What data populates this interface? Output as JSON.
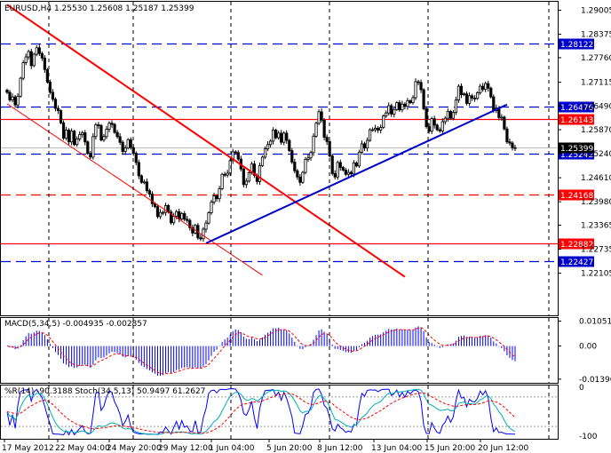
{
  "chart_data": [
    {
      "type": "candlestick",
      "title": "EURUSD,H4  1.25530 1.25608 1.25187 1.25399",
      "symbol": "EURUSD",
      "timeframe": "H4",
      "ohlc_readout": {
        "open": 1.2553,
        "high": 1.25608,
        "low": 1.25187,
        "close": 1.25399
      },
      "ylim": [
        1.21,
        1.2925
      ],
      "y_ticks": [
        "1.29005",
        "1.28375",
        "1.27760",
        "1.27115",
        "1.26490",
        "1.25870",
        "1.25240",
        "1.24610",
        "1.23980",
        "1.23365",
        "1.22735",
        "1.22105"
      ],
      "x_ticks": [
        "17 May 2012",
        "22 May 04:00",
        "24 May 20:00",
        "29 May 12:00",
        "1 Jun 04:00",
        "5 Jun 20:00",
        "8 Jun 12:00",
        "13 Jun 04:00",
        "15 Jun 20:00",
        "20 Jun 12:00"
      ],
      "grid": true,
      "current_price": "1.25399",
      "horizontal_levels": [
        {
          "label": "1.28122",
          "price": 1.28122,
          "color": "#0000cc",
          "style": "dashed"
        },
        {
          "label": "1.26476",
          "price": 1.26476,
          "color": "#0000cc",
          "style": "dashed"
        },
        {
          "label": "1.26143",
          "price": 1.26143,
          "color": "#ff0000",
          "style": "solid"
        },
        {
          "label": "1.25242",
          "price": 1.25242,
          "color": "#0000cc",
          "style": "dashed"
        },
        {
          "label": "1.24168",
          "price": 1.24168,
          "color": "#ff0000",
          "style": "dashed"
        },
        {
          "label": "1.22882",
          "price": 1.22882,
          "color": "#ff0000",
          "style": "solid"
        },
        {
          "label": "1.22427",
          "price": 1.22427,
          "color": "#0000cc",
          "style": "dashed"
        }
      ],
      "trend_lines": [
        {
          "name": "descending channel upper",
          "color": "#ff0000",
          "from": {
            "bar": 0,
            "price": 1.2915
          },
          "to": {
            "bar": 148,
            "price": 1.2201
          }
        },
        {
          "name": "descending channel lower",
          "color": "#ff0000",
          "from": {
            "bar": 0,
            "price": 1.2655
          },
          "to": {
            "bar": 95,
            "price": 1.2205
          }
        },
        {
          "name": "ascending support",
          "color": "#0000cc",
          "from": {
            "bar": 74,
            "price": 1.2289
          },
          "to": {
            "bar": 186,
            "price": 1.2653
          }
        }
      ],
      "closes": [
        1.2685,
        1.2665,
        1.2673,
        1.2652,
        1.2675,
        1.2722,
        1.2763,
        1.2778,
        1.2792,
        1.2755,
        1.2785,
        1.2802,
        1.2787,
        1.2775,
        1.2745,
        1.2712,
        1.2685,
        1.2667,
        1.2643,
        1.2637,
        1.2605,
        1.2565,
        1.2586,
        1.2555,
        1.2583,
        1.2548,
        1.2563,
        1.2574,
        1.2579,
        1.2555,
        1.2525,
        1.2515,
        1.2569,
        1.26,
        1.2598,
        1.256,
        1.2569,
        1.2588,
        1.2604,
        1.2601,
        1.258,
        1.2569,
        1.2554,
        1.253,
        1.2539,
        1.2561,
        1.254,
        1.2525,
        1.2501,
        1.2466,
        1.2449,
        1.245,
        1.2427,
        1.2418,
        1.2393,
        1.2385,
        1.2359,
        1.237,
        1.237,
        1.2388,
        1.2371,
        1.2343,
        1.236,
        1.2372,
        1.2353,
        1.2367,
        1.2352,
        1.2349,
        1.233,
        1.2316,
        1.2336,
        1.2303,
        1.2301,
        1.2326,
        1.2342,
        1.2369,
        1.2397,
        1.2413,
        1.2406,
        1.2432,
        1.247,
        1.2468,
        1.2473,
        1.2506,
        1.2529,
        1.2527,
        1.251,
        1.2484,
        1.2443,
        1.2452,
        1.2474,
        1.2497,
        1.2467,
        1.2451,
        1.2493,
        1.2515,
        1.2537,
        1.2548,
        1.2557,
        1.2586,
        1.2566,
        1.2578,
        1.2554,
        1.2578,
        1.2559,
        1.2532,
        1.2502,
        1.2479,
        1.2463,
        1.2449,
        1.2475,
        1.2509,
        1.2513,
        1.2527,
        1.257,
        1.2604,
        1.2634,
        1.2612,
        1.2567,
        1.2556,
        1.2518,
        1.2472,
        1.2463,
        1.2501,
        1.2488,
        1.2481,
        1.247,
        1.2475,
        1.2471,
        1.25,
        1.2492,
        1.2528,
        1.255,
        1.2539,
        1.2559,
        1.2587,
        1.2587,
        1.2591,
        1.2586,
        1.2593,
        1.2623,
        1.2631,
        1.265,
        1.2628,
        1.264,
        1.2658,
        1.2639,
        1.2654,
        1.2648,
        1.2663,
        1.2658,
        1.2671,
        1.2713,
        1.2711,
        1.2692,
        1.2642,
        1.2595,
        1.2583,
        1.2616,
        1.2599,
        1.2587,
        1.2584,
        1.2608,
        1.2617,
        1.2635,
        1.2617,
        1.2632,
        1.2665,
        1.2701,
        1.2679,
        1.2681,
        1.2656,
        1.2676,
        1.267,
        1.2669,
        1.2684,
        1.2701,
        1.2693,
        1.2708,
        1.2696,
        1.2673,
        1.2637,
        1.2644,
        1.2619,
        1.262,
        1.2589,
        1.2555,
        1.2552,
        1.254,
        1.254
      ]
    },
    {
      "type": "histogram",
      "title": "MACD(5,34,5) -0.004935 -0.002857",
      "indicator": "MACD(5,34,5)",
      "readout": [
        "-0.004935",
        "-0.002857"
      ],
      "y_ticks": [
        "0.010515",
        "0.00",
        "-0.01396"
      ],
      "ylim": [
        -0.0155,
        0.0122
      ],
      "signal_line_color": "#ff0000",
      "bar_color": "#0000ff"
    },
    {
      "type": "line",
      "title": "%R(14) -90.3188  Stoch(34,5,13) 50.9497 61.2627",
      "indicators": [
        "%R(14) -90.3188",
        "Stoch(34,5,13) 50.9497 61.2627"
      ],
      "y_ticks": [
        "0",
        "-100"
      ],
      "ylim": [
        -105,
        5
      ],
      "series": [
        {
          "name": "%R(14)",
          "color": "#0000ff"
        },
        {
          "name": "Stoch main",
          "color": "#00b0b0"
        },
        {
          "name": "Stoch signal",
          "color": "#ff0000",
          "style": "dashed"
        }
      ]
    }
  ]
}
